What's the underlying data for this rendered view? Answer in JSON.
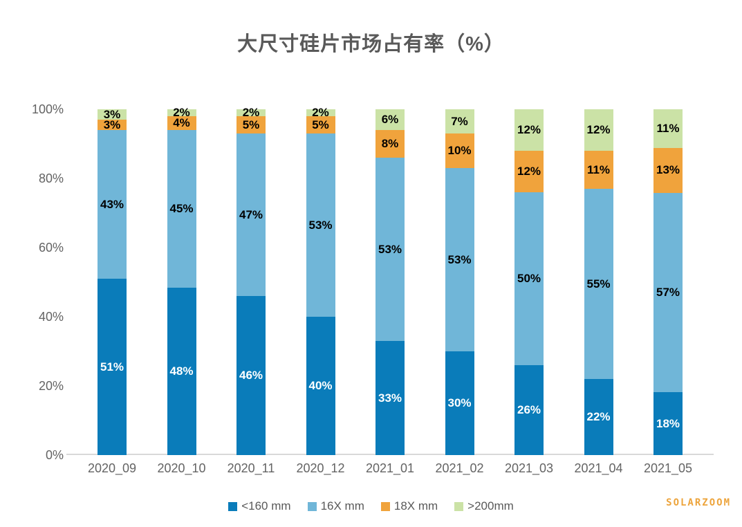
{
  "title": "大尺寸硅片市场占有率（%）",
  "watermark": "SOLARZOOM",
  "chart_data": {
    "type": "bar",
    "stacked": true,
    "stack_unit": "percent",
    "title": "大尺寸硅片市场占有率（%）",
    "xlabel": "",
    "ylabel": "",
    "ylim": [
      0,
      100
    ],
    "y_tick_labels": [
      "0%",
      "20%",
      "40%",
      "60%",
      "80%",
      "100%"
    ],
    "grid": false,
    "legend_position": "bottom",
    "data_label_suffix": "%",
    "categories": [
      "2020_09",
      "2020_10",
      "2020_11",
      "2020_12",
      "2021_01",
      "2021_02",
      "2021_03",
      "2021_04",
      "2021_05"
    ],
    "series": [
      {
        "name": "<160 mm",
        "color": "#0a7cba",
        "label_color": "#ffffff",
        "values": [
          51,
          48,
          46,
          40,
          33,
          30,
          26,
          22,
          18
        ]
      },
      {
        "name": "16X mm",
        "color": "#70b6d8",
        "label_color": "#000000",
        "values": [
          43,
          45,
          47,
          53,
          53,
          53,
          50,
          55,
          57
        ]
      },
      {
        "name": "18X mm",
        "color": "#f0a33c",
        "label_color": "#000000",
        "values": [
          3,
          4,
          5,
          5,
          8,
          10,
          12,
          11,
          13
        ]
      },
      {
        "name": ">200mm",
        "color": "#cbe2a6",
        "label_color": "#000000",
        "values": [
          3,
          2,
          2,
          2,
          6,
          7,
          12,
          12,
          11
        ]
      }
    ]
  }
}
